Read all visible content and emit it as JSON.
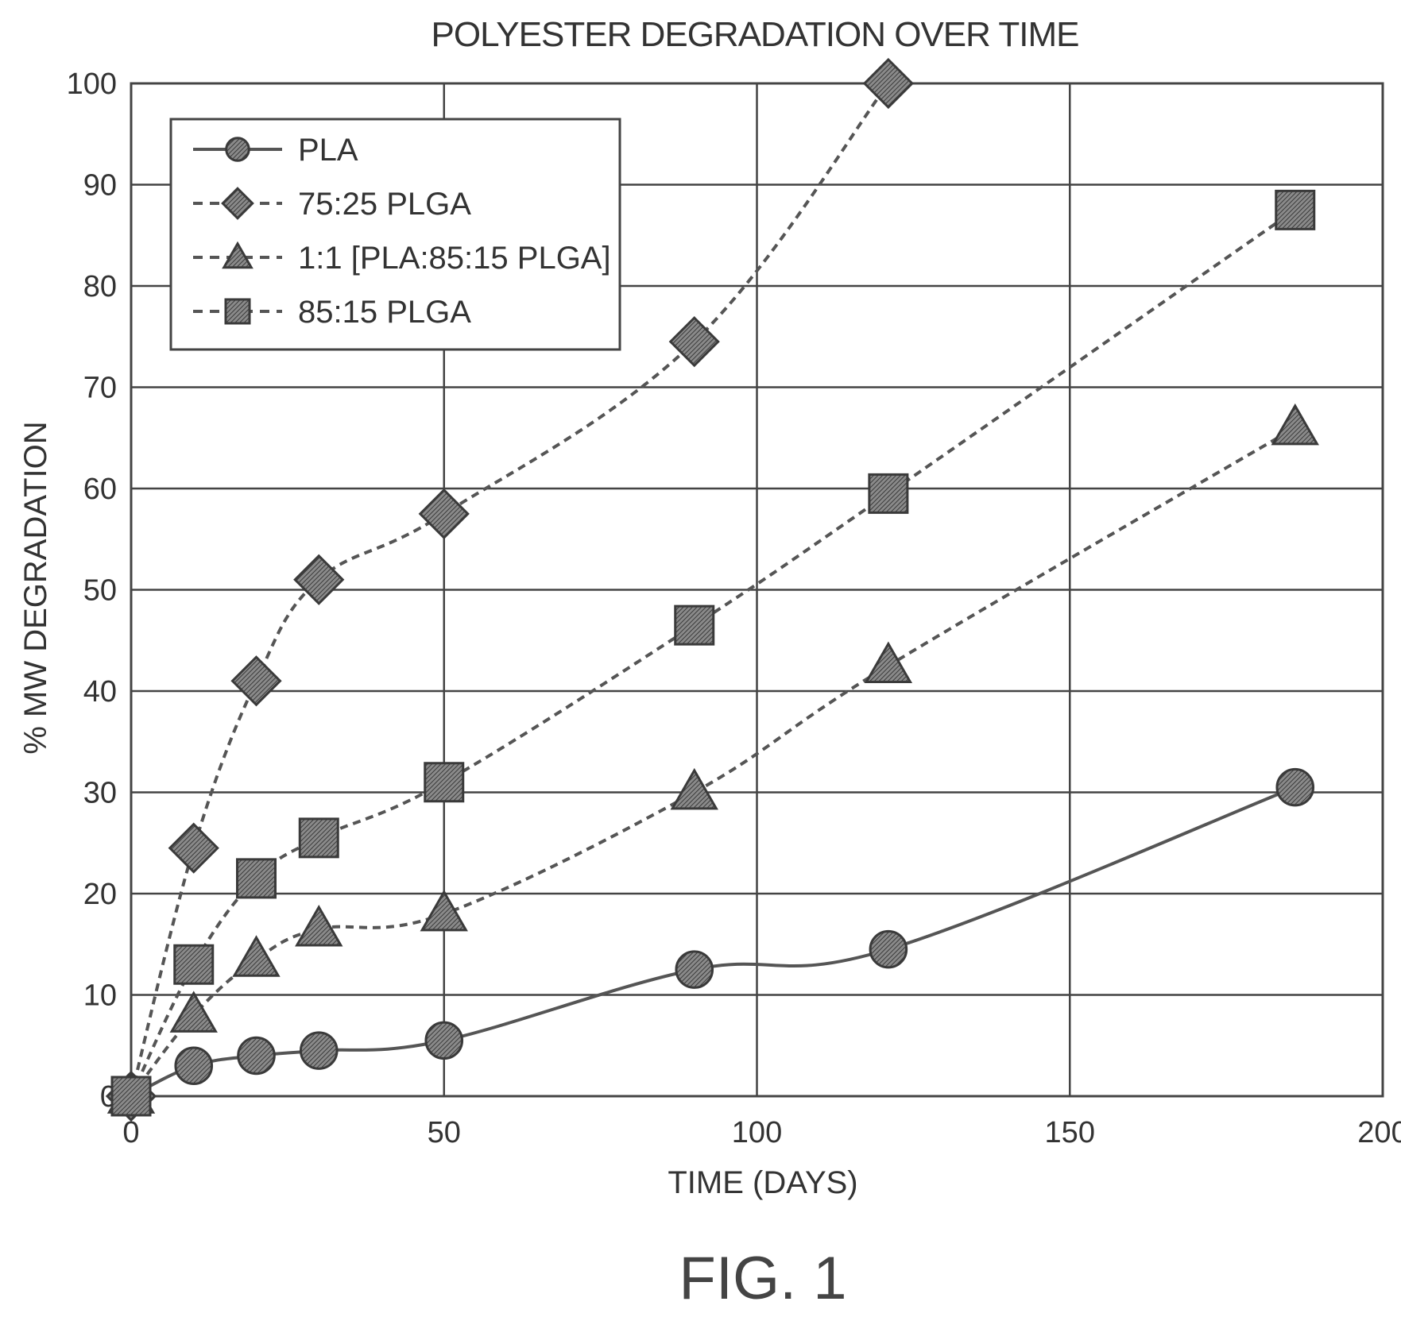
{
  "chart_data": {
    "type": "line",
    "title": "POLYESTER DEGRADATION OVER TIME",
    "xlabel": "TIME (DAYS)",
    "ylabel": "% MW DEGRADATION",
    "xlim": [
      0,
      200
    ],
    "ylim": [
      0,
      100
    ],
    "xticks": [
      0,
      50,
      100,
      150,
      200
    ],
    "yticks": [
      0,
      10,
      20,
      30,
      40,
      50,
      60,
      70,
      80,
      90,
      100
    ],
    "grid": true,
    "legend_position": "top-left",
    "series": [
      {
        "name": "PLA",
        "marker": "circle",
        "line_style": "solid",
        "x": [
          0,
          10,
          20,
          30,
          50,
          90,
          121,
          186
        ],
        "y": [
          0,
          3,
          4,
          4.5,
          5.5,
          12.5,
          14.5,
          30.5
        ]
      },
      {
        "name": "75:25 PLGA",
        "marker": "diamond",
        "line_style": "dashed",
        "x": [
          0,
          10,
          20,
          30,
          50,
          90,
          121
        ],
        "y": [
          0,
          24.5,
          41,
          51,
          57.5,
          74.5,
          100
        ]
      },
      {
        "name": "1:1 [PLA:85:15 PLGA]",
        "marker": "triangle",
        "line_style": "dashed",
        "x": [
          0,
          10,
          20,
          30,
          50,
          90,
          121,
          186
        ],
        "y": [
          0,
          8,
          13.5,
          16.5,
          18,
          30,
          42.5,
          66
        ]
      },
      {
        "name": "85:15 PLGA",
        "marker": "square",
        "line_style": "dashed",
        "x": [
          0,
          10,
          20,
          30,
          50,
          90,
          121,
          186
        ],
        "y": [
          0,
          13,
          21.5,
          25.5,
          31,
          46.5,
          59.5,
          87.5
        ]
      }
    ]
  },
  "caption": "FIG. 1",
  "colors": {
    "line": "#555555",
    "marker_fill": "#777777",
    "grid": "#444444"
  }
}
